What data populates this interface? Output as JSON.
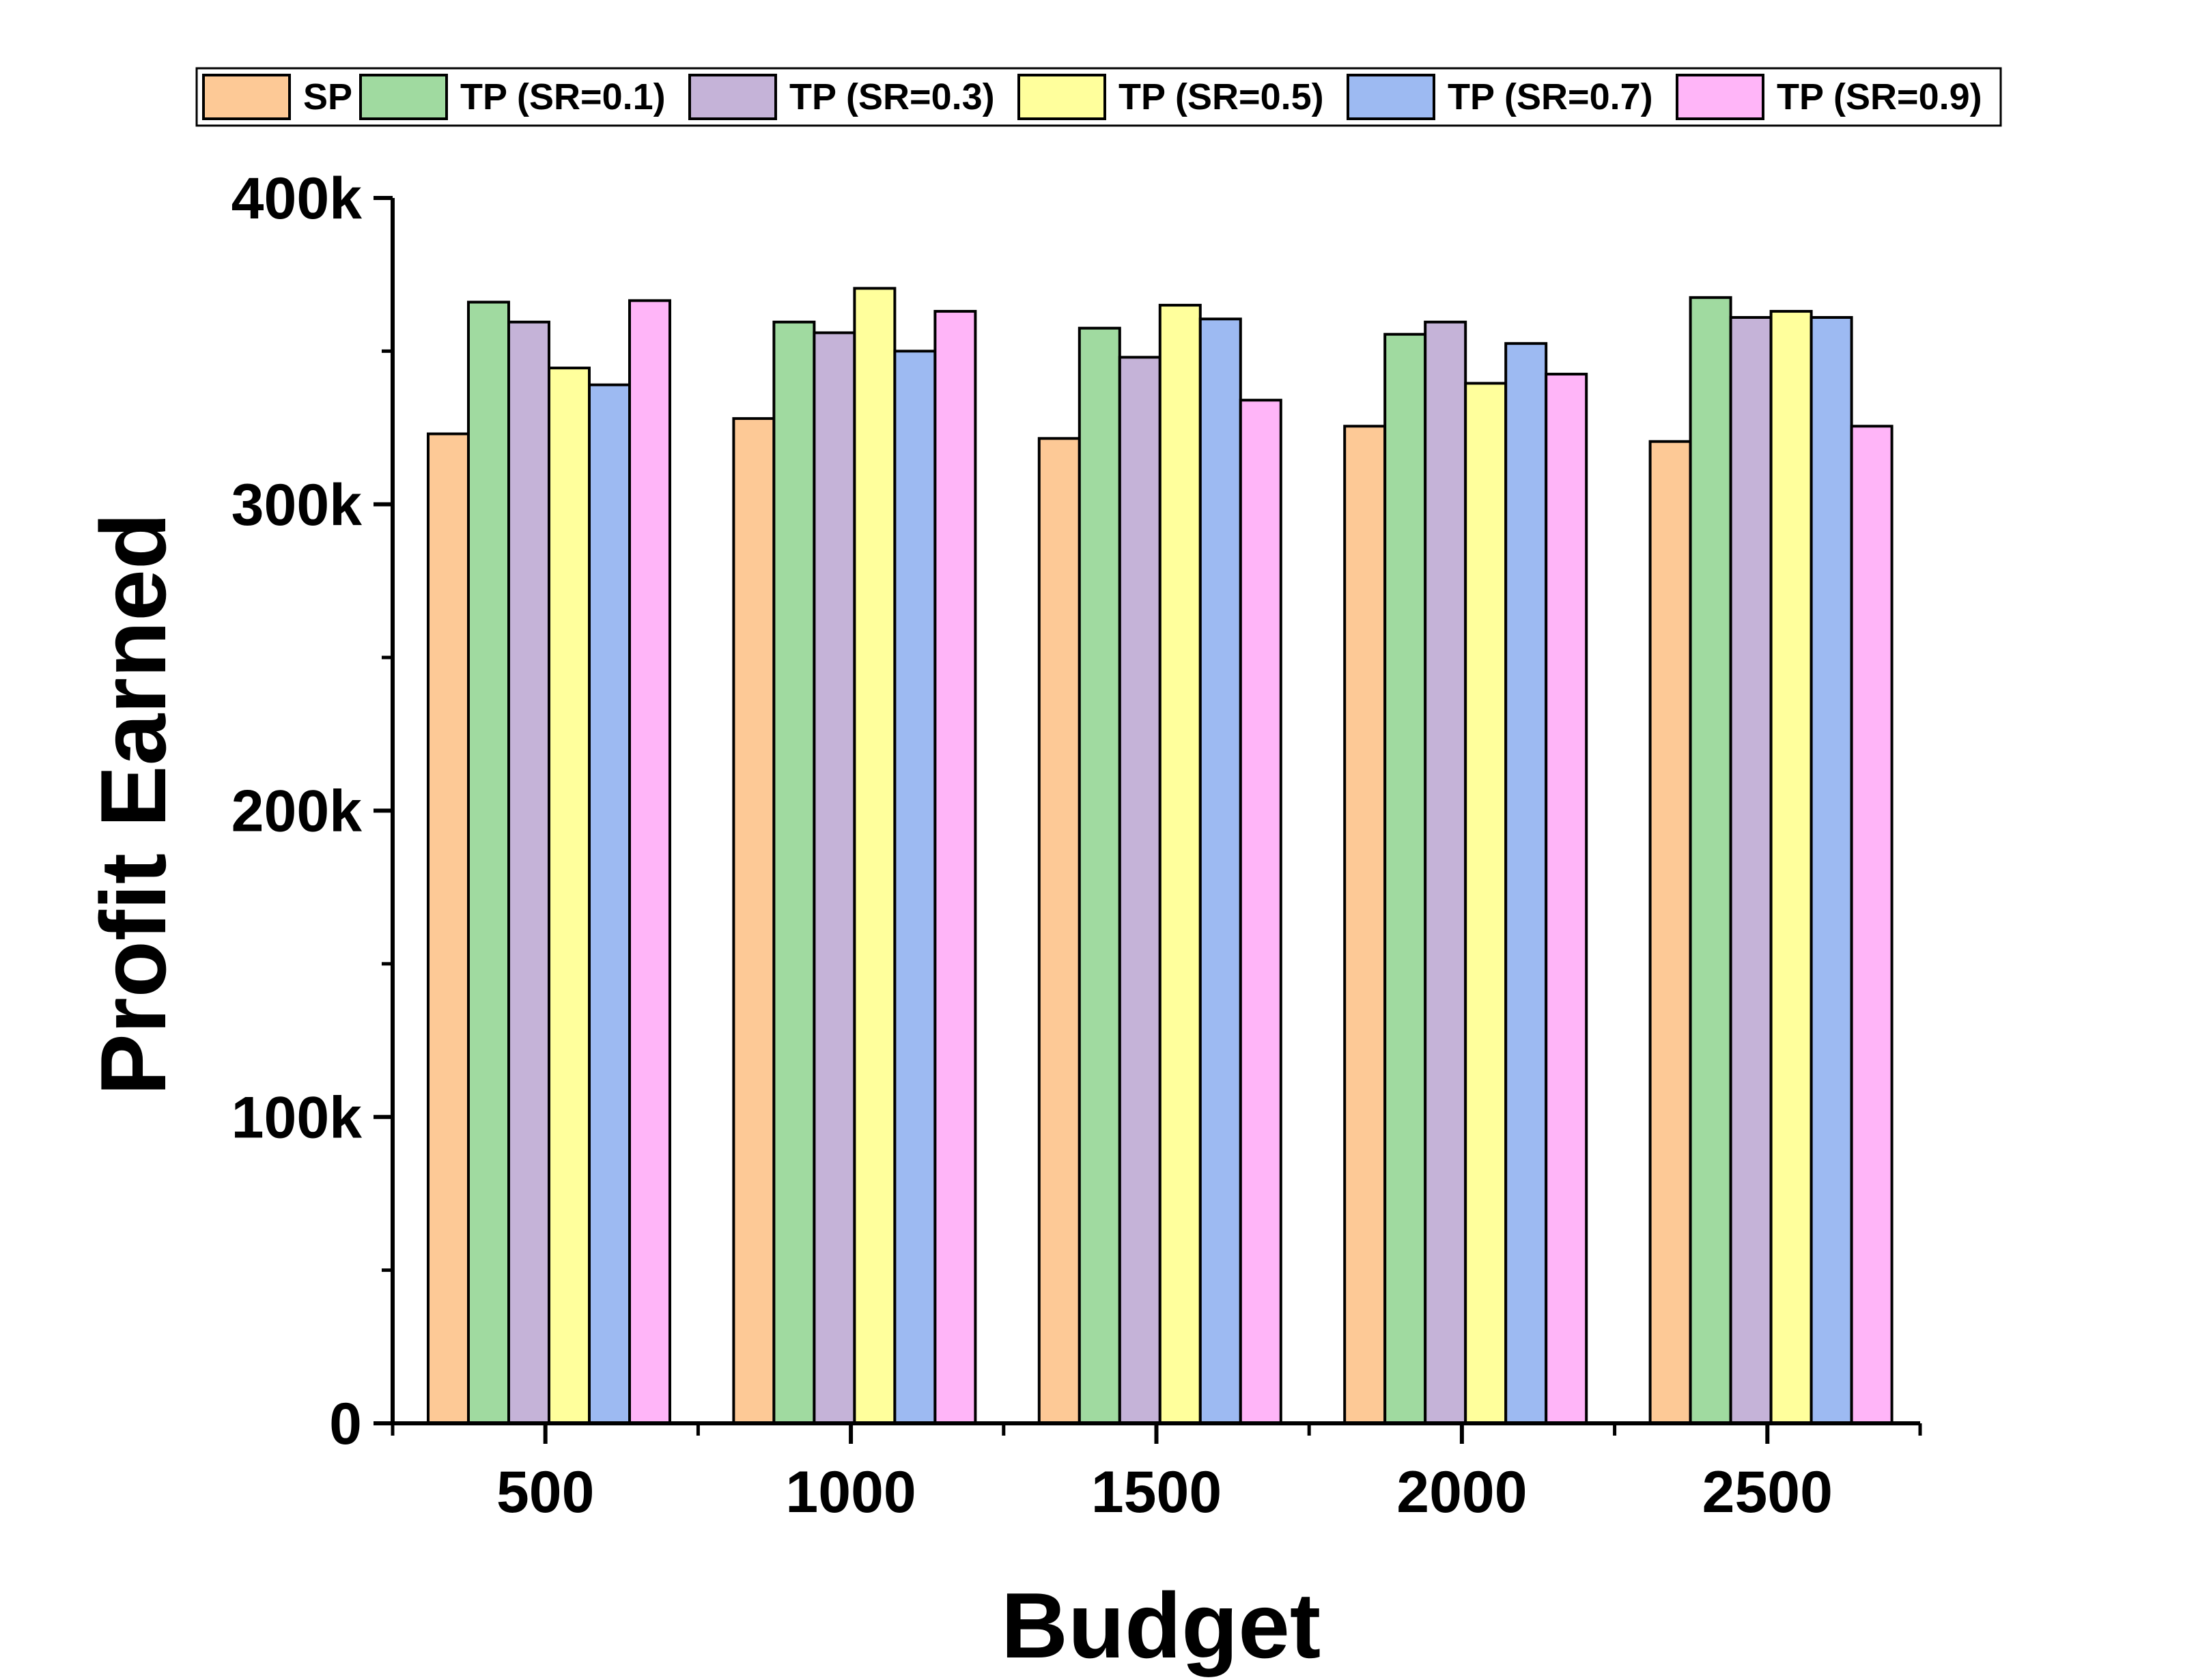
{
  "chart_data": {
    "type": "bar",
    "xlabel": "Budget",
    "ylabel": "Profit Earned",
    "categories": [
      "500",
      "1000",
      "1500",
      "2000",
      "2500"
    ],
    "ylim": [
      0,
      400000
    ],
    "yticks": [
      {
        "value": 0,
        "label": "0"
      },
      {
        "value": 100000,
        "label": "100k"
      },
      {
        "value": 200000,
        "label": "200k"
      },
      {
        "value": 300000,
        "label": "300k"
      },
      {
        "value": 400000,
        "label": "400k"
      }
    ],
    "y_minor_ticks": [
      50000,
      150000,
      250000,
      350000
    ],
    "grid": false,
    "legend_position": "top",
    "series": [
      {
        "name": "SP",
        "color": "#FDC996",
        "values": [
          323000,
          328000,
          321500,
          325500,
          320500
        ]
      },
      {
        "name": "TP (SR=0.1)",
        "color": "#A0DAA0",
        "values": [
          366000,
          359500,
          357500,
          355500,
          367500
        ]
      },
      {
        "name": "TP (SR=0.3)",
        "color": "#C5B3D8",
        "values": [
          359500,
          356000,
          348000,
          359500,
          361000
        ]
      },
      {
        "name": "TP (SR=0.5)",
        "color": "#FFFF9C",
        "values": [
          344500,
          370500,
          365000,
          339500,
          363000
        ]
      },
      {
        "name": "TP (SR=0.7)",
        "color": "#9DBAF2",
        "values": [
          339000,
          350000,
          360500,
          352500,
          361000
        ]
      },
      {
        "name": "TP (SR=0.9)",
        "color": "#FFB5F8",
        "values": [
          366500,
          363000,
          334000,
          342500,
          325500
        ]
      }
    ]
  }
}
